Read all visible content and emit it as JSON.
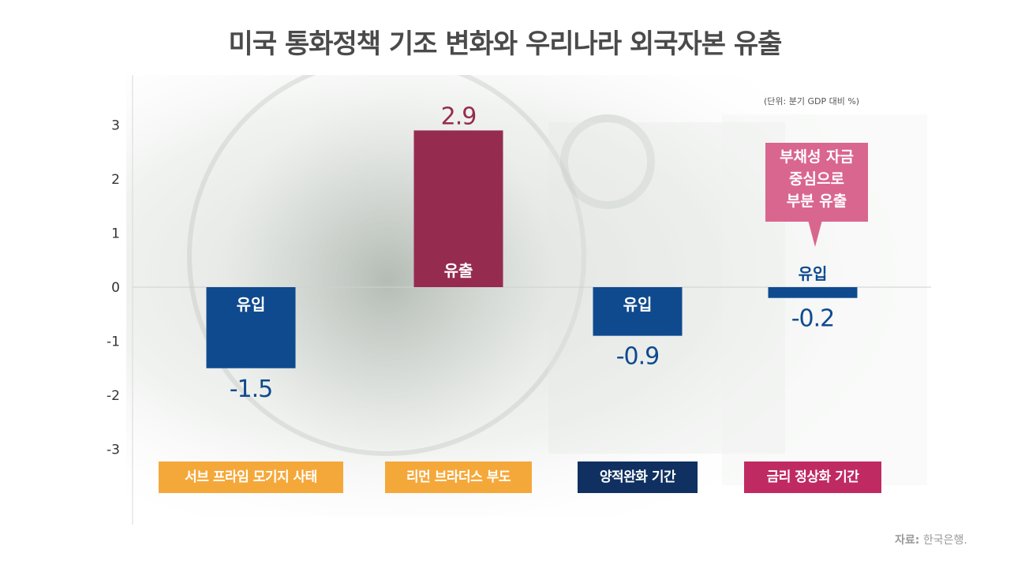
{
  "title": "미국 통화정책 기조 변화와 우리나라 외국자본 유출",
  "unit_note": "(단위: 분기 GDP 대비 %)",
  "source": {
    "label": "자료:",
    "text": "한국은행."
  },
  "callout": {
    "text": "부채성 자금\n중심으로\n부분 유출"
  },
  "colors": {
    "inflow_bar": "#0f4a8f",
    "outflow_bar": "#962b50",
    "label_orange": "#f5a83a",
    "label_navy": "#0f3060",
    "label_magenta": "#c02a63",
    "callout": "#d9668e"
  },
  "chart_data": {
    "type": "bar",
    "title": "미국 통화정책 기조 변화와 우리나라 외국자본 유출",
    "ylim": [
      -3.8,
      3.5
    ],
    "yticks": [
      3,
      2,
      1,
      0,
      -1,
      -2,
      -3
    ],
    "ytick_labels": [
      "3",
      "2",
      "1",
      "0",
      "-1",
      "-2",
      "-3"
    ],
    "grid": false,
    "categories": [
      "서브 프라임 모기지 사태",
      "리먼 브라더스 부도",
      "양적완화 기간",
      "금리 정상화 기간"
    ],
    "values": [
      -1.5,
      2.9,
      -0.9,
      -0.2
    ],
    "value_labels": [
      "-1.5",
      "2.9",
      "-0.9",
      "-0.2"
    ],
    "bar_labels": [
      "유입",
      "유출",
      "유입",
      "유입"
    ],
    "category_label_colors": [
      "#f5a83a",
      "#f5a83a",
      "#0f3060",
      "#c02a63"
    ]
  }
}
